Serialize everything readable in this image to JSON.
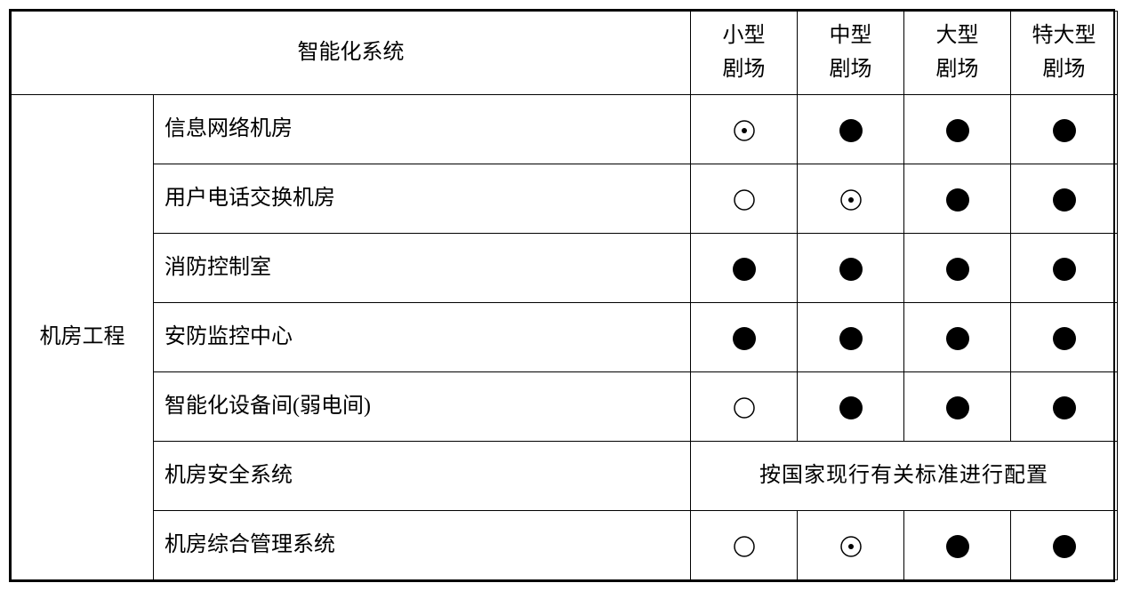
{
  "table": {
    "header": {
      "main_label": "智能化系统",
      "columns": [
        {
          "line1": "小型",
          "line2": "剧场"
        },
        {
          "line1": "中型",
          "line2": "剧场"
        },
        {
          "line1": "大型",
          "line2": "剧场"
        },
        {
          "line1": "特大型",
          "line2": "剧场"
        }
      ]
    },
    "category_label": "机房工程",
    "rows": [
      {
        "label": "信息网络机房",
        "symbols": [
          "dot-circle",
          "filled",
          "filled",
          "filled"
        ]
      },
      {
        "label": "用户电话交换机房",
        "symbols": [
          "empty",
          "dot-circle",
          "filled",
          "filled"
        ]
      },
      {
        "label": "消防控制室",
        "symbols": [
          "filled",
          "filled",
          "filled",
          "filled"
        ]
      },
      {
        "label": "安防监控中心",
        "symbols": [
          "filled",
          "filled",
          "filled",
          "filled"
        ]
      },
      {
        "label": "智能化设备间(弱电间)",
        "symbols": [
          "empty",
          "filled",
          "filled",
          "filled"
        ]
      },
      {
        "label": "机房安全系统",
        "merged_note": "按国家现行有关标准进行配置"
      },
      {
        "label": "机房综合管理系统",
        "symbols": [
          "empty",
          "dot-circle",
          "filled",
          "filled"
        ]
      }
    ],
    "styling": {
      "border_color": "#000000",
      "outer_border_width": 2,
      "inner_border_width": 1,
      "background_color": "#ffffff",
      "font_family": "SimSun",
      "font_size": 24,
      "header_row_height": 90,
      "data_row_height": 78,
      "col_widths": {
        "category": 160,
        "label": 604,
        "col": 120
      },
      "symbol": {
        "circle_radius": 11,
        "outer_stroke_width": 1.5,
        "filled_radius": 13,
        "inner_dot_radius": 3,
        "color": "#000000"
      }
    }
  }
}
